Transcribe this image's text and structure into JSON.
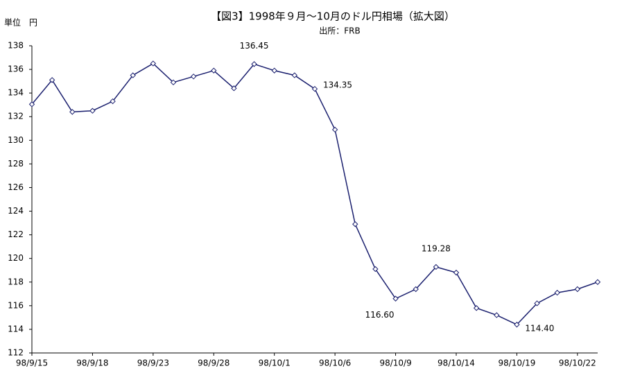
{
  "chart_data": {
    "type": "line",
    "title": "【図3】1998年９月～10月のドル円相場（拡大図）",
    "subtitle": "出所：FRB",
    "y_label": "単位　円",
    "categories": [
      "98/9/15",
      null,
      null,
      "98/9/18",
      null,
      null,
      "98/9/23",
      null,
      null,
      "98/9/28",
      null,
      null,
      "98/10/1",
      null,
      null,
      "98/10/6",
      null,
      null,
      "98/10/9",
      null,
      null,
      "98/10/14",
      null,
      null,
      "98/10/19",
      null,
      null,
      "98/10/22",
      null
    ],
    "series": [
      {
        "name": "ドル円",
        "color": "#1a1f6e",
        "values": [
          133.05,
          135.1,
          132.4,
          132.5,
          133.3,
          135.5,
          136.5,
          134.9,
          135.4,
          135.9,
          134.4,
          136.45,
          135.9,
          135.5,
          134.35,
          130.9,
          122.9,
          119.1,
          116.6,
          117.4,
          119.28,
          118.8,
          115.8,
          115.2,
          114.4,
          116.2,
          117.1,
          117.4,
          118.0
        ],
        "value_labels": [
          null,
          null,
          null,
          null,
          null,
          null,
          null,
          null,
          null,
          null,
          null,
          "136.45",
          null,
          null,
          "134.35",
          null,
          null,
          null,
          "116.60",
          null,
          "119.28",
          null,
          null,
          null,
          "114.40",
          null,
          null,
          null,
          null
        ]
      }
    ],
    "ylim": [
      112,
      138
    ],
    "yticks": [
      112,
      114,
      116,
      118,
      120,
      122,
      124,
      126,
      128,
      130,
      132,
      134,
      136,
      138
    ],
    "grid": false
  }
}
